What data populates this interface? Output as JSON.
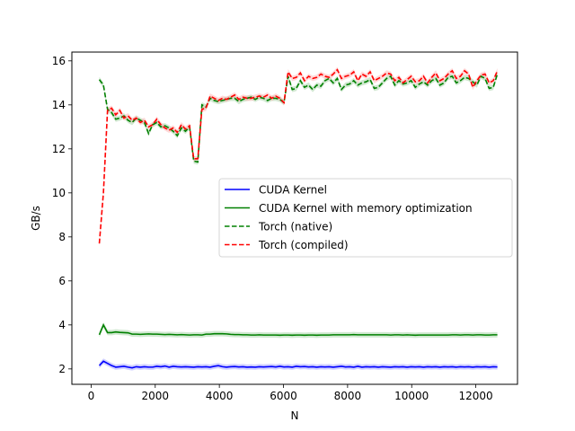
{
  "chart_data": {
    "type": "line",
    "xlabel": "N",
    "ylabel": "GB/s",
    "xlim": [
      -600,
      13300
    ],
    "ylim": [
      1.3,
      16.4
    ],
    "xticks": [
      0,
      2000,
      4000,
      6000,
      8000,
      10000,
      12000
    ],
    "yticks": [
      2,
      4,
      6,
      8,
      10,
      12,
      14,
      16
    ],
    "grid": false,
    "legend_position": "center-right",
    "x": [
      256,
      384,
      512,
      640,
      768,
      896,
      1024,
      1152,
      1280,
      1408,
      1536,
      1664,
      1792,
      1920,
      2048,
      2176,
      2304,
      2432,
      2560,
      2688,
      2816,
      2944,
      3072,
      3200,
      3328,
      3456,
      3584,
      3712,
      3840,
      3968,
      4096,
      4224,
      4352,
      4480,
      4608,
      4736,
      4864,
      4992,
      5120,
      5248,
      5376,
      5504,
      5632,
      5760,
      5888,
      6016,
      6144,
      6272,
      6400,
      6528,
      6656,
      6784,
      6912,
      7040,
      7168,
      7296,
      7424,
      7552,
      7680,
      7808,
      7936,
      8064,
      8192,
      8320,
      8448,
      8576,
      8704,
      8832,
      8960,
      9088,
      9216,
      9344,
      9472,
      9600,
      9728,
      9856,
      9984,
      10112,
      10240,
      10368,
      10496,
      10624,
      10752,
      10880,
      11008,
      11136,
      11264,
      11392,
      11520,
      11648,
      11776,
      11904,
      12032,
      12160,
      12288,
      12416,
      12544,
      12672
    ],
    "series": [
      {
        "name": "CUDA Kernel",
        "color": "#0000ff",
        "dash": "solid",
        "band": "#9999ff",
        "values": [
          2.15,
          2.35,
          2.25,
          2.15,
          2.08,
          2.1,
          2.12,
          2.08,
          2.05,
          2.1,
          2.08,
          2.1,
          2.08,
          2.08,
          2.12,
          2.1,
          2.13,
          2.08,
          2.12,
          2.1,
          2.09,
          2.1,
          2.09,
          2.08,
          2.1,
          2.09,
          2.1,
          2.08,
          2.12,
          2.15,
          2.1,
          2.08,
          2.1,
          2.11,
          2.09,
          2.1,
          2.08,
          2.09,
          2.08,
          2.1,
          2.09,
          2.1,
          2.11,
          2.09,
          2.12,
          2.09,
          2.1,
          2.08,
          2.12,
          2.1,
          2.11,
          2.09,
          2.1,
          2.08,
          2.1,
          2.09,
          2.1,
          2.08,
          2.1,
          2.12,
          2.09,
          2.1,
          2.08,
          2.12,
          2.08,
          2.1,
          2.09,
          2.1,
          2.08,
          2.1,
          2.09,
          2.08,
          2.1,
          2.09,
          2.1,
          2.08,
          2.1,
          2.09,
          2.1,
          2.08,
          2.1,
          2.09,
          2.1,
          2.08,
          2.1,
          2.09,
          2.1,
          2.08,
          2.1,
          2.09,
          2.1,
          2.08,
          2.1,
          2.09,
          2.1,
          2.08,
          2.1,
          2.09
        ]
      },
      {
        "name": "CUDA Kernel with memory optimization",
        "color": "#008000",
        "dash": "solid",
        "band": "#99cc99",
        "values": [
          3.55,
          4.0,
          3.65,
          3.65,
          3.68,
          3.66,
          3.65,
          3.64,
          3.58,
          3.58,
          3.57,
          3.58,
          3.59,
          3.58,
          3.58,
          3.57,
          3.56,
          3.57,
          3.56,
          3.55,
          3.56,
          3.55,
          3.54,
          3.55,
          3.55,
          3.54,
          3.58,
          3.58,
          3.6,
          3.6,
          3.6,
          3.59,
          3.57,
          3.56,
          3.56,
          3.55,
          3.55,
          3.54,
          3.54,
          3.55,
          3.54,
          3.54,
          3.54,
          3.54,
          3.53,
          3.54,
          3.54,
          3.53,
          3.54,
          3.54,
          3.53,
          3.54,
          3.54,
          3.53,
          3.54,
          3.54,
          3.54,
          3.55,
          3.55,
          3.55,
          3.55,
          3.55,
          3.56,
          3.55,
          3.55,
          3.55,
          3.55,
          3.55,
          3.55,
          3.55,
          3.55,
          3.54,
          3.55,
          3.55,
          3.54,
          3.55,
          3.54,
          3.53,
          3.54,
          3.54,
          3.54,
          3.54,
          3.54,
          3.54,
          3.54,
          3.54,
          3.55,
          3.55,
          3.54,
          3.55,
          3.55,
          3.54,
          3.55,
          3.55,
          3.54,
          3.54,
          3.55,
          3.55
        ]
      },
      {
        "name": "Torch (native)",
        "color": "#008000",
        "dash": "dashed",
        "band": "#99cc99",
        "values": [
          15.15,
          14.9,
          13.8,
          13.65,
          13.35,
          13.4,
          13.5,
          13.3,
          13.2,
          13.4,
          13.3,
          13.2,
          12.7,
          13.1,
          13.2,
          13.0,
          13.05,
          12.95,
          12.8,
          12.6,
          12.95,
          12.8,
          13.0,
          11.45,
          11.4,
          14.0,
          13.9,
          14.3,
          14.2,
          14.15,
          14.2,
          14.25,
          14.3,
          14.3,
          14.15,
          14.25,
          14.3,
          14.35,
          14.25,
          14.35,
          14.3,
          14.2,
          14.3,
          14.3,
          14.25,
          14.1,
          15.3,
          14.7,
          14.75,
          15.1,
          14.8,
          14.9,
          14.7,
          14.9,
          14.85,
          15.1,
          15.2,
          15.0,
          15.2,
          14.7,
          14.9,
          14.95,
          15.1,
          14.9,
          15.0,
          15.05,
          15.15,
          14.75,
          14.8,
          15.0,
          15.2,
          15.3,
          14.9,
          15.1,
          14.95,
          15.0,
          15.1,
          14.8,
          14.95,
          15.05,
          14.9,
          15.1,
          15.2,
          14.9,
          15.0,
          15.25,
          15.3,
          15.0,
          15.1,
          15.25,
          15.2,
          15.05,
          14.9,
          15.3,
          15.2,
          14.75,
          14.8,
          15.4
        ]
      },
      {
        "name": "Torch (compiled)",
        "color": "#ff0000",
        "dash": "dashed",
        "band": "#ffaaaa",
        "values": [
          7.7,
          10.0,
          13.75,
          13.85,
          13.55,
          13.75,
          13.4,
          13.5,
          13.3,
          13.4,
          13.2,
          13.3,
          13.0,
          13.1,
          13.35,
          13.1,
          12.95,
          12.85,
          12.95,
          12.75,
          13.1,
          12.9,
          13.05,
          11.55,
          11.55,
          13.8,
          13.85,
          14.4,
          14.3,
          14.2,
          14.3,
          14.25,
          14.35,
          14.45,
          14.25,
          14.35,
          14.3,
          14.3,
          14.35,
          14.4,
          14.35,
          14.45,
          14.3,
          14.4,
          14.3,
          14.1,
          15.5,
          15.2,
          15.25,
          15.45,
          15.1,
          15.3,
          15.2,
          15.25,
          15.4,
          15.3,
          15.25,
          15.4,
          15.6,
          15.2,
          15.3,
          15.35,
          15.5,
          15.1,
          15.4,
          15.3,
          15.5,
          15.1,
          15.2,
          15.3,
          15.45,
          15.4,
          15.1,
          15.25,
          15.0,
          15.15,
          15.3,
          15.05,
          15.1,
          15.3,
          15.0,
          15.25,
          15.45,
          15.1,
          15.2,
          15.4,
          15.55,
          15.2,
          15.3,
          15.55,
          15.4,
          14.8,
          15.1,
          15.35,
          15.4,
          15.0,
          15.1,
          15.55
        ]
      }
    ]
  }
}
